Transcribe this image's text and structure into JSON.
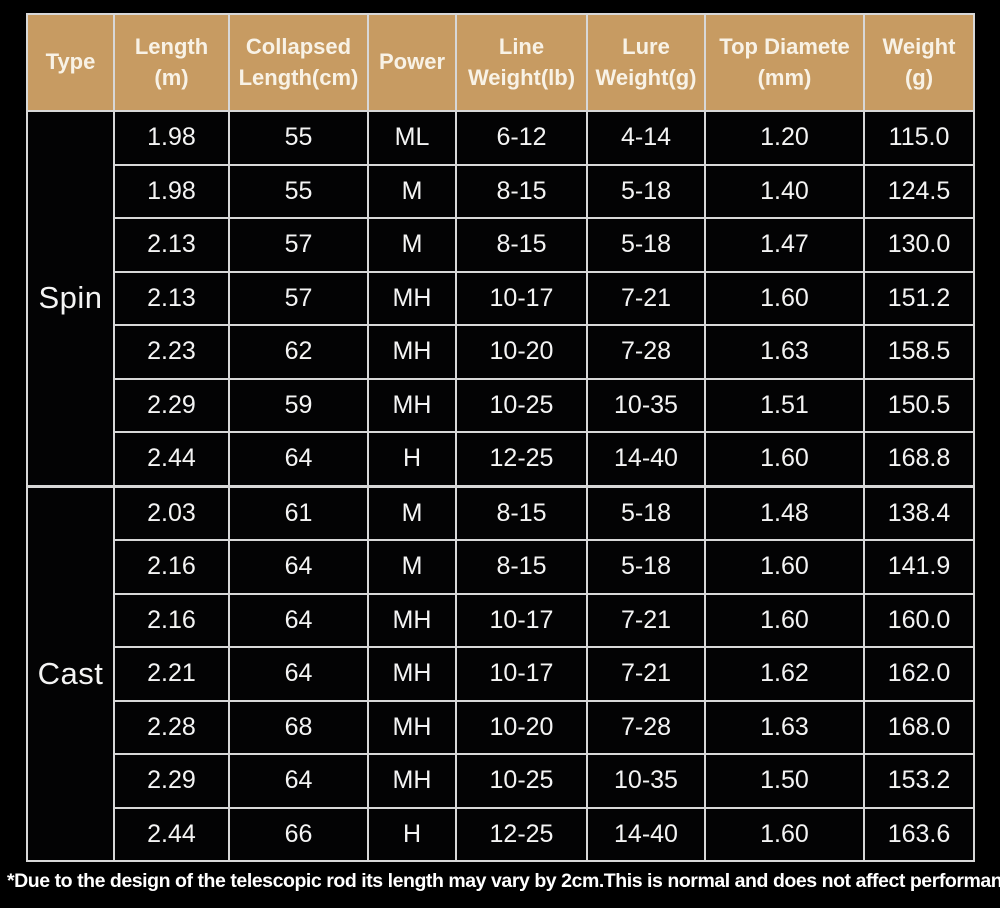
{
  "chart_data": {
    "type": "table",
    "columns": [
      "Type",
      "Length\n(m)",
      "Collapsed\nLength(cm)",
      "Power",
      "Line\nWeight(lb)",
      "Lure\nWeight(g)",
      "Top Diamete\n(mm)",
      "Weight\n(g)"
    ],
    "sections": [
      {
        "label": "Spin",
        "rows": [
          [
            "1.98",
            "55",
            "ML",
            "6-12",
            "4-14",
            "1.20",
            "115.0"
          ],
          [
            "1.98",
            "55",
            "M",
            "8-15",
            "5-18",
            "1.40",
            "124.5"
          ],
          [
            "2.13",
            "57",
            "M",
            "8-15",
            "5-18",
            "1.47",
            "130.0"
          ],
          [
            "2.13",
            "57",
            "MH",
            "10-17",
            "7-21",
            "1.60",
            "151.2"
          ],
          [
            "2.23",
            "62",
            "MH",
            "10-20",
            "7-28",
            "1.63",
            "158.5"
          ],
          [
            "2.29",
            "59",
            "MH",
            "10-25",
            "10-35",
            "1.51",
            "150.5"
          ],
          [
            "2.44",
            "64",
            "H",
            "12-25",
            "14-40",
            "1.60",
            "168.8"
          ]
        ]
      },
      {
        "label": "Cast",
        "rows": [
          [
            "2.03",
            "61",
            "M",
            "8-15",
            "5-18",
            "1.48",
            "138.4"
          ],
          [
            "2.16",
            "64",
            "M",
            "8-15",
            "5-18",
            "1.60",
            "141.9"
          ],
          [
            "2.16",
            "64",
            "MH",
            "10-17",
            "7-21",
            "1.60",
            "160.0"
          ],
          [
            "2.21",
            "64",
            "MH",
            "10-17",
            "7-21",
            "1.62",
            "162.0"
          ],
          [
            "2.28",
            "68",
            "MH",
            "10-20",
            "7-28",
            "1.63",
            "168.0"
          ],
          [
            "2.29",
            "64",
            "MH",
            "10-25",
            "10-35",
            "1.50",
            "153.2"
          ],
          [
            "2.44",
            "66",
            "H",
            "12-25",
            "14-40",
            "1.60",
            "163.6"
          ]
        ]
      }
    ],
    "legend_position": "none",
    "grid": true
  },
  "footnote": "*Due to the design of the telescopic rod its length may vary by 2cm.This is normal and does not affect performance.",
  "colors": {
    "background": "#000000",
    "header_bg": "#c79b62",
    "header_text": "#f8f2e6",
    "cell_bg": "#030304",
    "cell_text": "#f4f4f4",
    "grid_border": "#d8d8d8",
    "footnote_text": "#ffffff"
  }
}
